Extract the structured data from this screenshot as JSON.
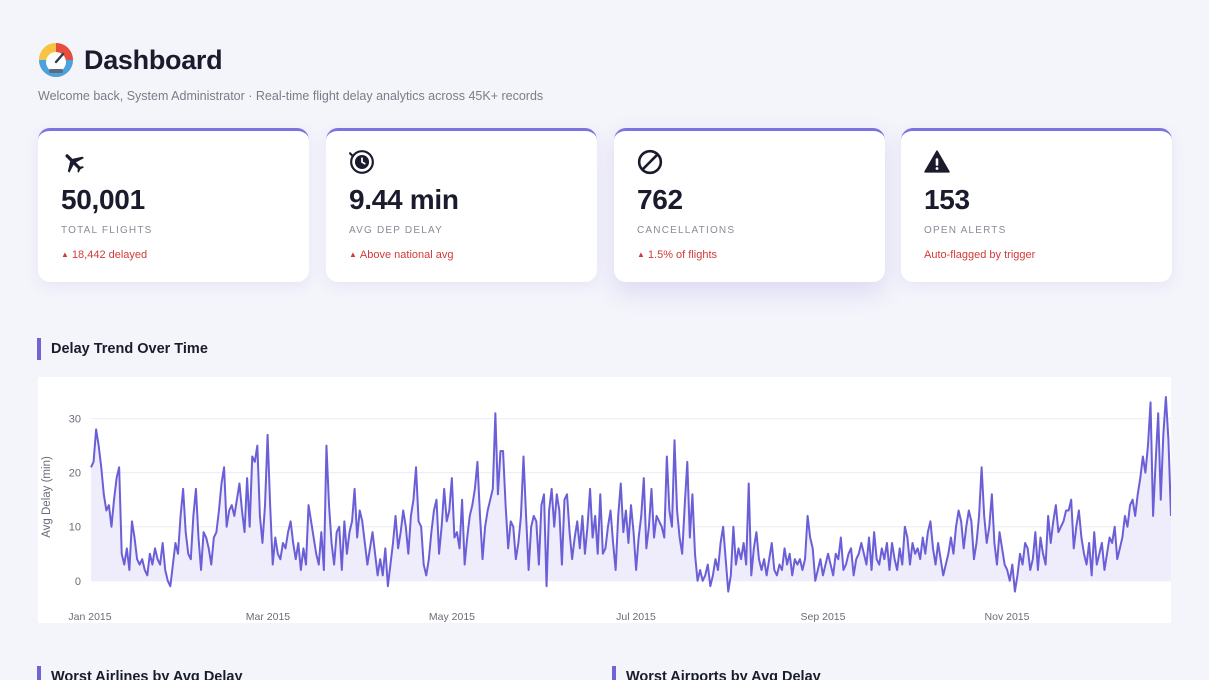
{
  "header": {
    "title": "Dashboard",
    "subtitle": "Welcome back, System Administrator · Real-time flight delay analytics across 45K+ records",
    "logo_icon": "gauge-icon"
  },
  "cards": [
    {
      "icon": "airplane-icon",
      "value": "50,001",
      "label": "Total Flights",
      "note": "18,442 delayed",
      "note_arrow": "▲"
    },
    {
      "icon": "clock-icon",
      "value": "9.44 min",
      "label": "Avg Dep Delay",
      "note": "Above national avg",
      "note_arrow": "▲"
    },
    {
      "icon": "ban-icon",
      "value": "762",
      "label": "Cancellations",
      "note": "1.5% of flights",
      "note_arrow": "▲"
    },
    {
      "icon": "warning-icon",
      "value": "153",
      "label": "Open Alerts",
      "note": "Auto-flagged by trigger"
    }
  ],
  "sections": {
    "trend_title": "Delay Trend Over Time",
    "airlines_title": "Worst Airlines by Avg Delay",
    "airports_title": "Worst Airports by Avg Delay"
  },
  "colors": {
    "accent": "#6f63d6",
    "line": "#6b5fd8",
    "fill": "#efedfb",
    "alert": "#d23a3a"
  },
  "chart_data": {
    "type": "line",
    "title": "Delay Trend Over Time",
    "xlabel": "",
    "ylabel": "Avg Delay (min)",
    "ylim": [
      -3,
      34
    ],
    "yticks": [
      0,
      10,
      20,
      30
    ],
    "xlim": [
      "2015-01-01",
      "2015-12-31"
    ],
    "xticks": [
      "Jan 2015",
      "Mar 2015",
      "May 2015",
      "Jul 2015",
      "Sep 2015",
      "Nov 2015"
    ],
    "grid": true,
    "series": [
      {
        "values": [
          21,
          22,
          28,
          25,
          21,
          16,
          13,
          14,
          10,
          15,
          19,
          21,
          5,
          3,
          6,
          2,
          11,
          8,
          4,
          3,
          4,
          2,
          1,
          5,
          3,
          6,
          4,
          3,
          7,
          2,
          0,
          -1,
          3,
          7,
          5,
          12,
          17,
          9,
          5,
          4,
          12,
          17,
          8,
          2,
          9,
          8,
          6,
          3,
          8,
          9,
          13,
          18,
          21,
          10,
          13,
          14,
          12,
          15,
          18,
          13,
          9,
          19,
          10,
          23,
          22,
          25,
          12,
          7,
          14,
          27,
          14,
          3,
          8,
          5,
          4,
          7,
          6,
          9,
          11,
          7,
          4,
          7,
          2,
          6,
          3,
          14,
          11,
          8,
          5,
          3,
          9,
          2,
          25,
          14,
          7,
          3,
          9,
          10,
          2,
          11,
          5,
          9,
          11,
          17,
          8,
          13,
          11,
          7,
          3,
          6,
          9,
          5,
          1,
          4,
          1,
          6,
          -1,
          3,
          7,
          12,
          6,
          9,
          13,
          10,
          5,
          12,
          15,
          21,
          11,
          10,
          3,
          1,
          4,
          9,
          13,
          15,
          5,
          10,
          17,
          11,
          13,
          19,
          8,
          9,
          6,
          15,
          3,
          8,
          12,
          14,
          17,
          22,
          12,
          4,
          10,
          13,
          15,
          17,
          31,
          16,
          24,
          24,
          14,
          6,
          11,
          10,
          4,
          7,
          12,
          23,
          12,
          2,
          10,
          12,
          11,
          3,
          14,
          16,
          -1,
          13,
          17,
          10,
          16,
          13,
          3,
          15,
          16,
          9,
          4,
          8,
          11,
          6,
          12,
          5,
          10,
          17,
          8,
          12,
          5,
          16,
          5,
          6,
          10,
          13,
          7,
          2,
          12,
          18,
          9,
          13,
          7,
          14,
          9,
          2,
          8,
          12,
          19,
          6,
          10,
          17,
          8,
          12,
          11,
          10,
          8,
          23,
          13,
          10,
          26,
          13,
          8,
          5,
          14,
          22,
          8,
          16,
          5,
          0,
          2,
          0,
          1,
          3,
          -1,
          1,
          4,
          2,
          7,
          10,
          4,
          -2,
          1,
          10,
          3,
          6,
          4,
          7,
          3,
          18,
          1,
          6,
          9,
          4,
          2,
          4,
          1,
          4,
          7,
          2,
          1,
          3,
          2,
          6,
          3,
          5,
          1,
          4,
          3,
          4,
          2,
          4,
          12,
          8,
          6,
          0,
          2,
          4,
          1,
          3,
          5,
          3,
          1,
          5,
          4,
          8,
          2,
          3,
          5,
          6,
          1,
          4,
          5,
          7,
          5,
          3,
          8,
          2,
          9,
          4,
          3,
          6,
          4,
          7,
          2,
          7,
          4,
          2,
          6,
          3,
          10,
          8,
          3,
          7,
          5,
          6,
          4,
          8,
          5,
          9,
          11,
          6,
          3,
          7,
          4,
          1,
          3,
          5,
          8,
          5,
          10,
          13,
          11,
          6,
          10,
          13,
          11,
          4,
          7,
          12,
          21,
          12,
          7,
          10,
          16,
          7,
          3,
          9,
          6,
          3,
          2,
          0,
          3,
          -2,
          1,
          5,
          3,
          7,
          6,
          2,
          4,
          9,
          2,
          8,
          5,
          3,
          12,
          7,
          11,
          14,
          9,
          10,
          11,
          13,
          13,
          15,
          6,
          10,
          13,
          8,
          5,
          3,
          7,
          1,
          9,
          3,
          5,
          7,
          2,
          5,
          8,
          7,
          10,
          4,
          6,
          8,
          12,
          10,
          14,
          15,
          12,
          16,
          19,
          23,
          20,
          25,
          33,
          12,
          22,
          31,
          15,
          27,
          34,
          26,
          12
        ]
      }
    ]
  }
}
